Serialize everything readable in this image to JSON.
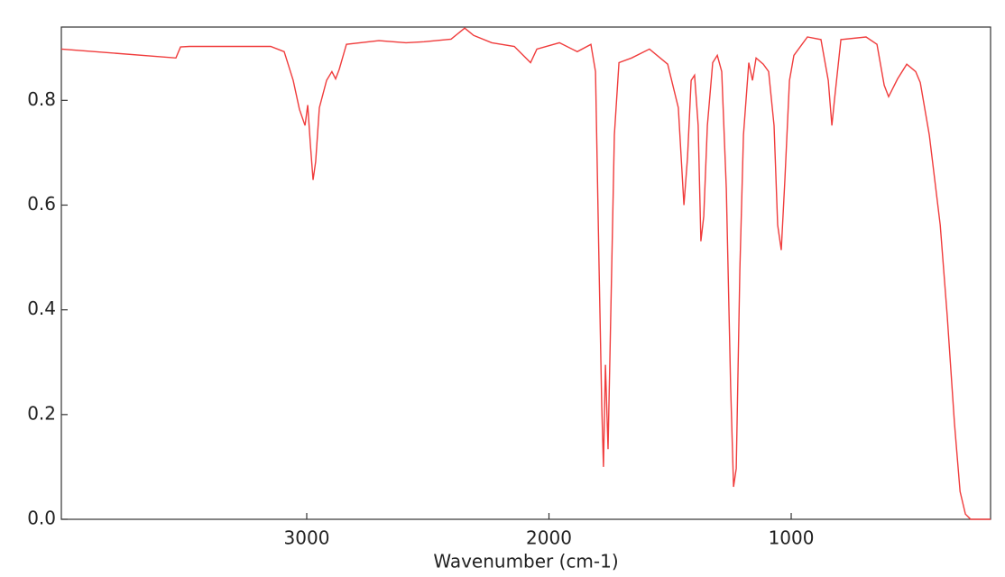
{
  "chart_data": {
    "type": "line",
    "xlabel": "Wavenumber (cm-1)",
    "x": [
      4013,
      3540,
      3521,
      3484,
      3149,
      3093,
      3056,
      3030,
      3007,
      2996,
      2985,
      2974,
      2963,
      2948,
      2918,
      2896,
      2881,
      2866,
      2836,
      2702,
      2590,
      2516,
      2404,
      2348,
      2311,
      2236,
      2143,
      2076,
      2050,
      1957,
      1883,
      1827,
      1808,
      1793,
      1782,
      1775,
      1767,
      1756,
      1745,
      1730,
      1711,
      1659,
      1585,
      1510,
      1466,
      1443,
      1428,
      1413,
      1399,
      1384,
      1373,
      1361,
      1346,
      1324,
      1305,
      1287,
      1268,
      1250,
      1238,
      1227,
      1212,
      1197,
      1175,
      1160,
      1145,
      1115,
      1093,
      1071,
      1056,
      1041,
      1026,
      1007,
      989,
      933,
      877,
      847,
      832,
      821,
      795,
      691,
      646,
      616,
      598,
      561,
      523,
      486,
      467,
      430,
      385,
      356,
      326,
      303,
      281,
      259,
      177
    ],
    "series": [
      {
        "color": "#f03c3c",
        "values": [
          0.898,
          0.881,
          0.902,
          0.903,
          0.903,
          0.893,
          0.838,
          0.783,
          0.752,
          0.791,
          0.717,
          0.648,
          0.683,
          0.786,
          0.838,
          0.855,
          0.841,
          0.859,
          0.907,
          0.914,
          0.91,
          0.912,
          0.917,
          0.938,
          0.924,
          0.91,
          0.903,
          0.872,
          0.898,
          0.91,
          0.893,
          0.907,
          0.855,
          0.476,
          0.217,
          0.1,
          0.295,
          0.134,
          0.39,
          0.734,
          0.872,
          0.881,
          0.898,
          0.869,
          0.786,
          0.6,
          0.691,
          0.838,
          0.848,
          0.752,
          0.531,
          0.579,
          0.752,
          0.872,
          0.886,
          0.855,
          0.631,
          0.252,
          0.062,
          0.097,
          0.476,
          0.734,
          0.872,
          0.838,
          0.881,
          0.869,
          0.855,
          0.752,
          0.562,
          0.514,
          0.648,
          0.838,
          0.886,
          0.921,
          0.916,
          0.838,
          0.752,
          0.803,
          0.916,
          0.921,
          0.907,
          0.829,
          0.807,
          0.841,
          0.869,
          0.855,
          0.834,
          0.734,
          0.562,
          0.39,
          0.183,
          0.053,
          0.01,
          0.0,
          0.0
        ]
      }
    ],
    "xlim": [
      4013,
      177
    ],
    "ylim": [
      0,
      0.94
    ],
    "xticks": [
      3000,
      2000,
      1000
    ],
    "yticks": [
      {
        "value": 0,
        "label": "0.0"
      },
      0.2,
      0.4,
      0.6,
      0.8
    ]
  }
}
